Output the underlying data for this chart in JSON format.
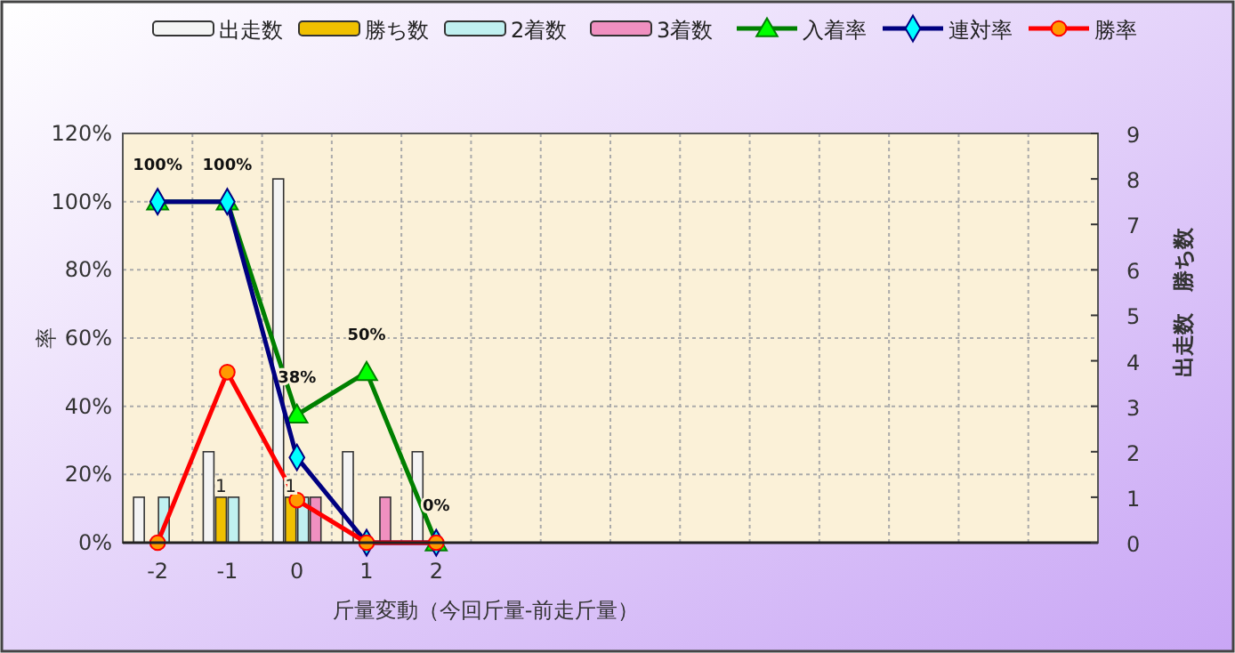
{
  "chart_data": {
    "type": "bar",
    "xlabel": "斤量変動（今回斤量-前走斤量）",
    "ylabel": "率",
    "y2label": "出走数　勝ち数",
    "categories": [
      "-2",
      "-1",
      "0",
      "1",
      "2",
      null,
      null,
      null,
      null,
      null,
      null,
      null,
      null,
      null
    ],
    "series": [
      {
        "name": "出走数",
        "axis": "y2",
        "color": "#f4f4f4",
        "values": [
          1,
          2,
          8,
          2,
          2,
          null,
          null,
          null,
          null,
          null,
          null,
          null,
          null,
          null
        ]
      },
      {
        "name": "勝ち数",
        "axis": "y2",
        "color": "#f0c000",
        "values": [
          0,
          1,
          1,
          0,
          0,
          null,
          null,
          null,
          null,
          null,
          null,
          null,
          null,
          null
        ],
        "value_labels": [
          null,
          "1",
          "1",
          null,
          null,
          null,
          null,
          null,
          null,
          null,
          null,
          null,
          null,
          null
        ]
      },
      {
        "name": "2着数",
        "axis": "y2",
        "color": "#c0f0f0",
        "values": [
          1,
          1,
          1,
          0,
          0,
          null,
          null,
          null,
          null,
          null,
          null,
          null,
          null,
          null
        ]
      },
      {
        "name": "3着数",
        "axis": "y2",
        "color": "#f090c0",
        "values": [
          0,
          0,
          1,
          1,
          0,
          null,
          null,
          null,
          null,
          null,
          null,
          null,
          null,
          null
        ]
      },
      {
        "name": "入着率",
        "type": "line",
        "color": "#008000",
        "marker": "triangle",
        "values": [
          100,
          100,
          37.5,
          50,
          0,
          null,
          null,
          null,
          null,
          null,
          null,
          null,
          null,
          null
        ],
        "value_labels": [
          "100%",
          "100%",
          "38%",
          "50%",
          "0%",
          null,
          null,
          null,
          null,
          null,
          null,
          null,
          null,
          null
        ]
      },
      {
        "name": "連対率",
        "type": "line",
        "color": "#000080",
        "marker": "diamond",
        "values": [
          100,
          100,
          25,
          0,
          0,
          null,
          null,
          null,
          null,
          null,
          null,
          null,
          null,
          null
        ]
      },
      {
        "name": "勝率",
        "type": "line",
        "color": "#ff0000",
        "marker": "circle",
        "values": [
          0,
          50,
          12.5,
          0,
          0,
          null,
          null,
          null,
          null,
          null,
          null,
          null,
          null,
          null
        ]
      }
    ],
    "ylim": [
      0,
      120
    ],
    "yticks": [
      {
        "value": 0,
        "label": "0%"
      },
      {
        "value": 20,
        "label": "20%"
      },
      {
        "value": 40,
        "label": "40%"
      },
      {
        "value": 60,
        "label": "60%"
      },
      {
        "value": 80,
        "label": "80%"
      },
      {
        "value": 100,
        "label": "100%"
      },
      {
        "value": 120,
        "label": "120%"
      }
    ],
    "y2lim": [
      0,
      9
    ],
    "y2ticks": [
      0,
      1,
      2,
      3,
      4,
      5,
      6,
      7,
      8,
      9
    ],
    "grid": true,
    "legend": "top"
  }
}
